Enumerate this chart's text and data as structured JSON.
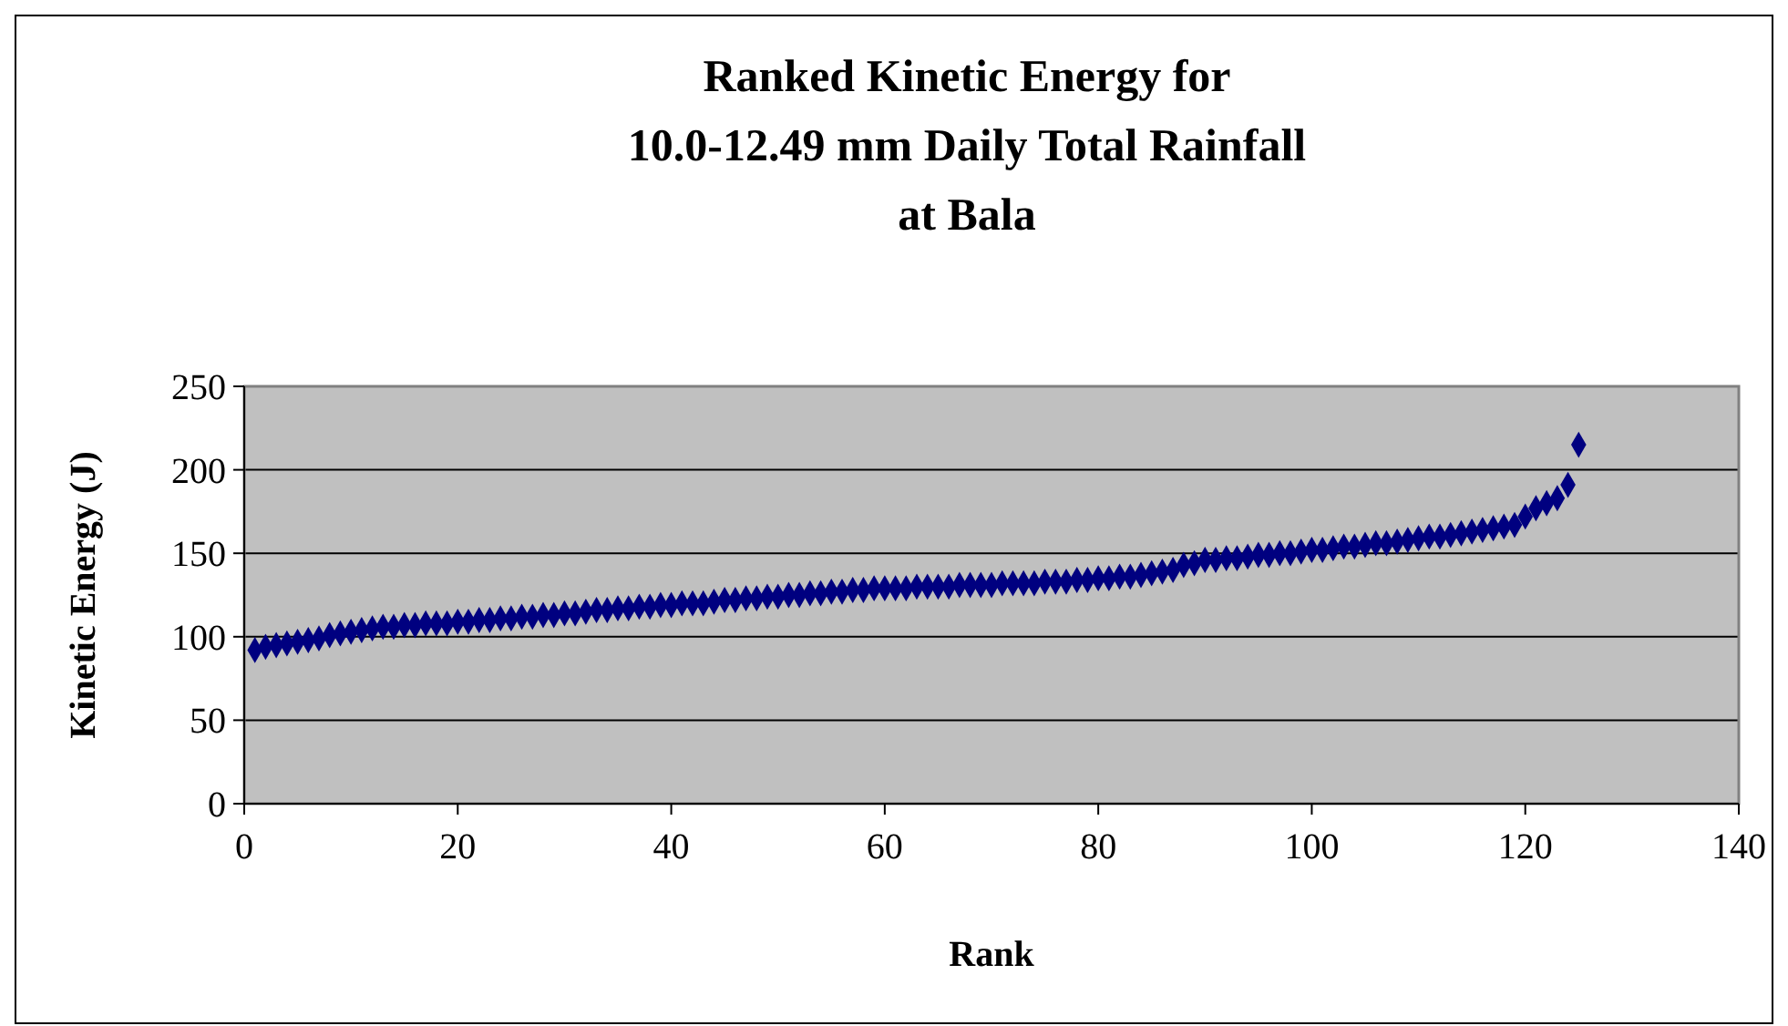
{
  "chart_data": {
    "type": "scatter",
    "title": "Ranked Kinetic Energy for\n10.0-12.49 mm Daily Total Rainfall\nat Bala",
    "xlabel": "Rank",
    "ylabel": "Kinetic Energy (J)",
    "x": [
      1,
      2,
      3,
      4,
      5,
      6,
      7,
      8,
      9,
      10,
      11,
      12,
      13,
      14,
      15,
      16,
      17,
      18,
      19,
      20,
      21,
      22,
      23,
      24,
      25,
      26,
      27,
      28,
      29,
      30,
      31,
      32,
      33,
      34,
      35,
      36,
      37,
      38,
      39,
      40,
      41,
      42,
      43,
      44,
      45,
      46,
      47,
      48,
      49,
      50,
      51,
      52,
      53,
      54,
      55,
      56,
      57,
      58,
      59,
      60,
      61,
      62,
      63,
      64,
      65,
      66,
      67,
      68,
      69,
      70,
      71,
      72,
      73,
      74,
      75,
      76,
      77,
      78,
      79,
      80,
      81,
      82,
      83,
      84,
      85,
      86,
      87,
      88,
      89,
      90,
      91,
      92,
      93,
      94,
      95,
      96,
      97,
      98,
      99,
      100,
      101,
      102,
      103,
      104,
      105,
      106,
      107,
      108,
      109,
      110,
      111,
      112,
      113,
      114,
      115,
      116,
      117,
      118,
      119,
      120,
      121,
      122,
      123,
      124,
      125
    ],
    "series": [
      {
        "color": "#000080",
        "values": [
          92,
          94,
          95,
          96,
          97,
          98,
          99,
          101,
          102,
          103,
          104,
          105,
          106,
          106,
          107,
          107,
          108,
          108,
          108,
          109,
          109,
          110,
          110,
          111,
          111,
          112,
          112,
          113,
          113,
          114,
          114,
          115,
          116,
          116,
          117,
          117,
          118,
          118,
          119,
          119,
          120,
          120,
          120,
          121,
          122,
          122,
          123,
          123,
          124,
          124,
          125,
          125,
          126,
          126,
          127,
          127,
          128,
          128,
          129,
          129,
          129,
          129,
          130,
          130,
          130,
          130,
          131,
          131,
          131,
          131,
          132,
          132,
          132,
          132,
          133,
          133,
          133,
          134,
          134,
          135,
          135,
          136,
          136,
          137,
          138,
          139,
          140,
          143,
          144,
          146,
          146,
          147,
          147,
          148,
          149,
          149,
          150,
          150,
          151,
          152,
          152,
          153,
          154,
          154,
          155,
          156,
          156,
          157,
          158,
          159,
          160,
          160,
          161,
          162,
          163,
          164,
          165,
          166,
          167,
          172,
          177,
          180,
          183,
          191,
          215
        ]
      }
    ],
    "xlim": [
      0,
      140
    ],
    "xticks": [
      0,
      20,
      40,
      60,
      80,
      100,
      120,
      140
    ],
    "ylim": [
      0,
      250
    ],
    "yticks": [
      0,
      50,
      100,
      150,
      200,
      250
    ],
    "grid": "y",
    "marker": "diamond"
  }
}
